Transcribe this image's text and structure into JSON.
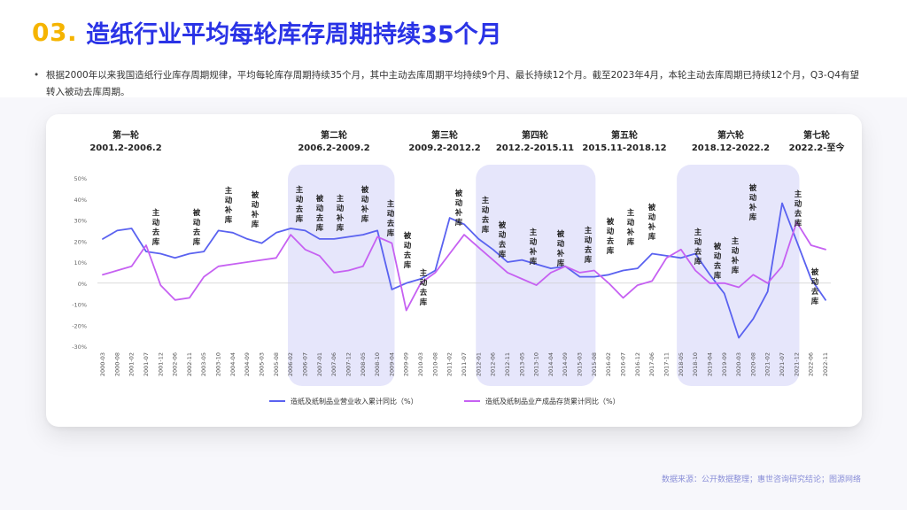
{
  "header": {
    "number": "03.",
    "title": "造纸行业平均每轮库存周期持续35个月"
  },
  "summary": {
    "bullet": "•",
    "text": "根据2000年以来我国造纸行业库存周期规律，平均每轮库存周期持续35个月，其中主动去库周期平均持续9个月、最长持续12个月。截至2023年4月，本轮主动去库周期已持续12个月，Q3-Q4有望转入被动去库周期。"
  },
  "source": "数据来源：公开数据整理；惠世咨询研究结论；图源网络",
  "colors": {
    "accent": "#f5b400",
    "title": "#2a33e6",
    "series1": "#5a62f0",
    "series2": "#c661f2",
    "highlight": "#e6e6fb"
  },
  "chart_data": {
    "type": "line",
    "ylim": [
      -30,
      50
    ],
    "yticks": [
      "50%",
      "40%",
      "30%",
      "20%",
      "10%",
      "0%",
      "-10%",
      "-20%",
      "-30%"
    ],
    "categories": [
      "2000-03",
      "2000-08",
      "2001-02",
      "2001-07",
      "2001-12",
      "2002-06",
      "2002-11",
      "2003-05",
      "2003-10",
      "2004-04",
      "2004-09",
      "2005-03",
      "2005-08",
      "2006-02",
      "2006-07",
      "2007-01",
      "2007-06",
      "2007-12",
      "2008-05",
      "2008-10",
      "2009-04",
      "2009-09",
      "2010-03",
      "2010-08",
      "2011-02",
      "2011-07",
      "2012-01",
      "2012-06",
      "2012-11",
      "2013-05",
      "2013-10",
      "2014-04",
      "2014-09",
      "2015-03",
      "2015-08",
      "2016-02",
      "2016-07",
      "2016-12",
      "2017-06",
      "2017-11",
      "2018-05",
      "2018-10",
      "2019-04",
      "2019-09",
      "2020-03",
      "2020-08",
      "2021-02",
      "2021-07",
      "2021-12",
      "2022-06",
      "2022-11"
    ],
    "series": [
      {
        "name": "造纸及纸制品业营业收入累计同比（%）",
        "color": "#5a62f0",
        "values": [
          21,
          25,
          26,
          15,
          14,
          12,
          14,
          15,
          25,
          24,
          21,
          19,
          24,
          26,
          25,
          21,
          21,
          22,
          23,
          25,
          -3,
          0,
          2,
          6,
          31,
          28,
          21,
          16,
          10,
          11,
          9,
          7,
          8,
          3,
          3,
          4,
          6,
          7,
          14,
          13,
          12,
          14,
          4,
          -5,
          -26,
          -17,
          -4,
          38,
          20,
          2,
          -8
        ]
      },
      {
        "name": "造纸及纸制品业产成品存货累计同比（%）",
        "color": "#c661f2",
        "values": [
          4,
          6,
          8,
          18,
          -1,
          -8,
          -7,
          3,
          8,
          9,
          10,
          11,
          12,
          23,
          16,
          13,
          5,
          6,
          8,
          22,
          19,
          -13,
          0,
          5,
          14,
          23,
          17,
          11,
          5,
          2,
          -1,
          5,
          8,
          5,
          6,
          0,
          -7,
          -1,
          1,
          12,
          16,
          6,
          0,
          0,
          -2,
          4,
          0,
          8,
          29,
          18,
          16
        ]
      }
    ],
    "rounds": [
      {
        "name": "第一轮",
        "range": "2001.2-2006.2",
        "highlight": false
      },
      {
        "name": "第二轮",
        "range": "2006.2-2009.2",
        "highlight": true
      },
      {
        "name": "第三轮",
        "range": "2009.2-2012.2",
        "highlight": false
      },
      {
        "name": "第四轮",
        "range": "2012.2-2015.11",
        "highlight": true
      },
      {
        "name": "第五轮",
        "range": "2015.11-2018.12",
        "highlight": false
      },
      {
        "name": "第六轮",
        "range": "2018.12-2022.2",
        "highlight": true
      },
      {
        "name": "第七轮",
        "range": "2022.2-至今",
        "highlight": false
      }
    ],
    "annotations": [
      "主动去库",
      "被动去库",
      "主动补库",
      "被动补库",
      "主动去库",
      "被动补库",
      "主动去库",
      "被动去库",
      "主动补库",
      "被动补库",
      "主动去库",
      "被动去库",
      "主动去库",
      "被动补库",
      "主动去库",
      "被动去库",
      "主动补库",
      "被动补库",
      "主动去库",
      "被动去库",
      "主动去库",
      "被动去库",
      "主动补库",
      "被动补库",
      "主动去库",
      "被动去库",
      "主动补库",
      "被动补库",
      "主动去库",
      "被动去库"
    ]
  }
}
